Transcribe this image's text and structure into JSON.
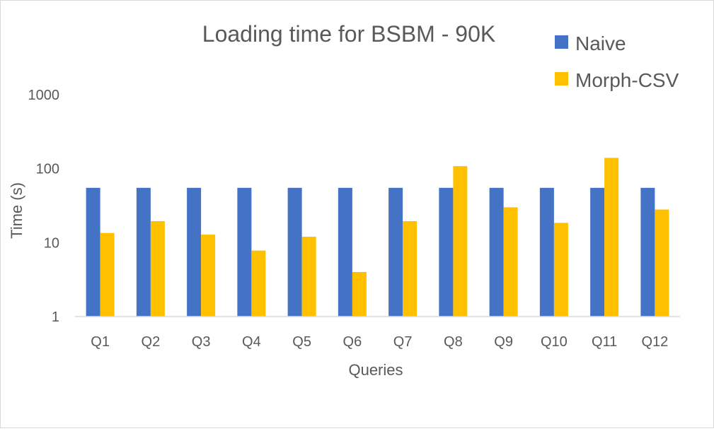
{
  "chart_data": {
    "type": "bar",
    "title": "Loading time for BSBM - 90K",
    "xlabel": "Queries",
    "ylabel": "Time (s)",
    "y_scale": "log",
    "ylim": [
      1,
      1000
    ],
    "y_ticks": [
      "1",
      "10",
      "100",
      "1000"
    ],
    "grid": false,
    "legend_position": "top-right",
    "categories": [
      "Q1",
      "Q2",
      "Q3",
      "Q4",
      "Q5",
      "Q6",
      "Q7",
      "Q8",
      "Q9",
      "Q10",
      "Q11",
      "Q12"
    ],
    "series": [
      {
        "name": "Naive",
        "color": "#4472C4",
        "values": [
          55,
          55,
          55,
          55,
          55,
          55,
          55,
          55,
          55,
          55,
          55,
          55
        ]
      },
      {
        "name": "Morph-CSV",
        "color": "#FFC000",
        "values": [
          13.5,
          19.5,
          12.8,
          7.8,
          12,
          4,
          19.5,
          108,
          30,
          18.5,
          140,
          28
        ]
      }
    ]
  }
}
